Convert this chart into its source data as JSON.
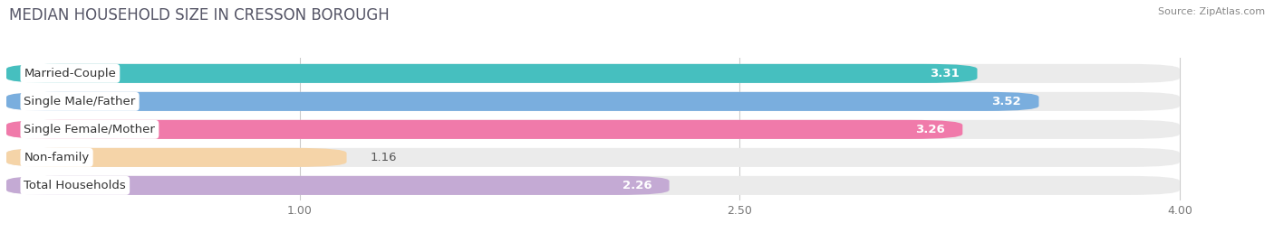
{
  "title": "MEDIAN HOUSEHOLD SIZE IN CRESSON BOROUGH",
  "source": "Source: ZipAtlas.com",
  "categories": [
    "Married-Couple",
    "Single Male/Father",
    "Single Female/Mother",
    "Non-family",
    "Total Households"
  ],
  "values": [
    3.31,
    3.52,
    3.26,
    1.16,
    2.26
  ],
  "bar_colors": [
    "#46bfbf",
    "#7aaede",
    "#f07aaa",
    "#f5d4a8",
    "#c4aad4"
  ],
  "xlim": [
    0.0,
    4.3
  ],
  "xmin": 0.0,
  "xmax": 4.0,
  "xticks": [
    1.0,
    2.5,
    4.0
  ],
  "label_fontsize": 9.5,
  "value_fontsize": 9.5,
  "title_fontsize": 12,
  "background_color": "#ffffff",
  "bar_bg_color": "#ebebeb"
}
